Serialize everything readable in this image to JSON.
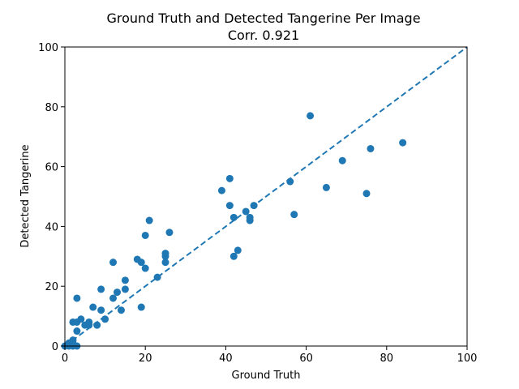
{
  "chart_data": {
    "type": "scatter",
    "title": "Ground Truth and Detected Tangerine Per Image",
    "subtitle": "Corr. 0.921",
    "xlabel": "Ground Truth",
    "ylabel": "Detected Tangerine",
    "xlim": [
      0,
      100
    ],
    "ylim": [
      0,
      100
    ],
    "xticks": [
      "0",
      "20",
      "40",
      "60",
      "80",
      "100"
    ],
    "yticks": [
      "0",
      "20",
      "40",
      "60",
      "80",
      "100"
    ],
    "grid": false,
    "point_color": "#1f77b4",
    "reference_line": {
      "x": [
        0,
        100
      ],
      "y": [
        0,
        100
      ],
      "style": "dashed",
      "color": "#1f77b4"
    },
    "points": [
      [
        0,
        0
      ],
      [
        1,
        0
      ],
      [
        1,
        1
      ],
      [
        2,
        0
      ],
      [
        2,
        1
      ],
      [
        2,
        2
      ],
      [
        3,
        0
      ],
      [
        2,
        8
      ],
      [
        3,
        8
      ],
      [
        3,
        5
      ],
      [
        3,
        16
      ],
      [
        4,
        9
      ],
      [
        5,
        7
      ],
      [
        6,
        8
      ],
      [
        6,
        7
      ],
      [
        7,
        13
      ],
      [
        8,
        7
      ],
      [
        9,
        12
      ],
      [
        9,
        19
      ],
      [
        10,
        9
      ],
      [
        12,
        16
      ],
      [
        12,
        28
      ],
      [
        13,
        18
      ],
      [
        14,
        12
      ],
      [
        15,
        19
      ],
      [
        15,
        22
      ],
      [
        18,
        29
      ],
      [
        19,
        28
      ],
      [
        19,
        13
      ],
      [
        20,
        26
      ],
      [
        20,
        37
      ],
      [
        21,
        42
      ],
      [
        23,
        23
      ],
      [
        25,
        30
      ],
      [
        25,
        31
      ],
      [
        25,
        28
      ],
      [
        26,
        38
      ],
      [
        39,
        52
      ],
      [
        41,
        56
      ],
      [
        41,
        47
      ],
      [
        42,
        43
      ],
      [
        42,
        30
      ],
      [
        43,
        32
      ],
      [
        45,
        45
      ],
      [
        46,
        42
      ],
      [
        46,
        43
      ],
      [
        47,
        47
      ],
      [
        56,
        55
      ],
      [
        57,
        44
      ],
      [
        61,
        77
      ],
      [
        65,
        53
      ],
      [
        69,
        62
      ],
      [
        75,
        51
      ],
      [
        76,
        66
      ],
      [
        84,
        68
      ]
    ]
  }
}
